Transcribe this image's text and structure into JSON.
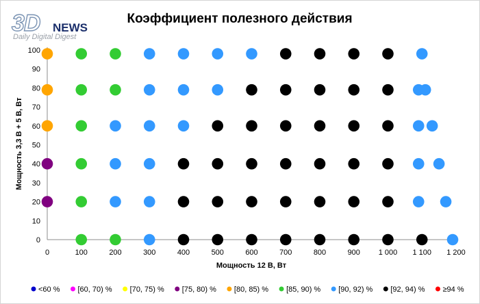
{
  "logo": {
    "mark": "3D",
    "word": "NEWS",
    "tagline": "Daily Digital Digest"
  },
  "chart_data": {
    "type": "scatter",
    "title": "Коэффициент полезного действия",
    "xlabel": "Мощность  12 В, Вт",
    "ylabel": "Мощность  3,3 В + 5 В, Вт",
    "xlim": [
      0,
      1200
    ],
    "ylim": [
      0,
      100
    ],
    "x_ticks": [
      0,
      100,
      200,
      300,
      400,
      500,
      600,
      700,
      800,
      900,
      1000,
      1100,
      1200
    ],
    "x_tick_labels": [
      "0",
      "100",
      "200",
      "300",
      "400",
      "500",
      "600",
      "700",
      "800",
      "900",
      "1 000",
      "1 100",
      "1 200"
    ],
    "y_ticks": [
      0,
      10,
      20,
      30,
      40,
      50,
      60,
      70,
      80,
      90,
      100
    ],
    "y_tick_labels": [
      "0",
      "10",
      "20",
      "30",
      "40",
      "50",
      "60",
      "70",
      "80",
      "90",
      "100"
    ],
    "grid": false,
    "legend_position": "bottom",
    "series": [
      {
        "name": "<60 %",
        "color": "#0000cc",
        "points": []
      },
      {
        "name": "[60, 70) %",
        "color": "#ff00ff",
        "points": []
      },
      {
        "name": "[70, 75) %",
        "color": "#ffff00",
        "points": []
      },
      {
        "name": "[75, 80) %",
        "color": "#800080",
        "points": [
          [
            0,
            40
          ],
          [
            0,
            20
          ]
        ]
      },
      {
        "name": "[80, 85) %",
        "color": "#ffa500",
        "points": [
          [
            0,
            98
          ],
          [
            0,
            79
          ],
          [
            0,
            60
          ]
        ]
      },
      {
        "name": "[85, 90) %",
        "color": "#33cc33",
        "points": [
          [
            100,
            98
          ],
          [
            200,
            98
          ],
          [
            100,
            79
          ],
          [
            200,
            79
          ],
          [
            100,
            60
          ],
          [
            100,
            40
          ],
          [
            100,
            20
          ],
          [
            100,
            0
          ],
          [
            200,
            0
          ]
        ]
      },
      {
        "name": "[90, 92) %",
        "color": "#3399ff",
        "points": [
          [
            300,
            98
          ],
          [
            400,
            98
          ],
          [
            500,
            98
          ],
          [
            600,
            98
          ],
          [
            1100,
            98
          ],
          [
            300,
            79
          ],
          [
            400,
            79
          ],
          [
            500,
            79
          ],
          [
            1090,
            79
          ],
          [
            1110,
            79
          ],
          [
            200,
            60
          ],
          [
            300,
            60
          ],
          [
            400,
            60
          ],
          [
            1090,
            60
          ],
          [
            1130,
            60
          ],
          [
            200,
            40
          ],
          [
            300,
            40
          ],
          [
            1090,
            40
          ],
          [
            1150,
            40
          ],
          [
            200,
            20
          ],
          [
            300,
            20
          ],
          [
            1090,
            20
          ],
          [
            1170,
            20
          ],
          [
            300,
            0
          ],
          [
            1190,
            0
          ]
        ]
      },
      {
        "name": "[92, 94) %",
        "color": "#000000",
        "points": [
          [
            700,
            98
          ],
          [
            800,
            98
          ],
          [
            900,
            98
          ],
          [
            1000,
            98
          ],
          [
            600,
            79
          ],
          [
            700,
            79
          ],
          [
            800,
            79
          ],
          [
            900,
            79
          ],
          [
            1000,
            79
          ],
          [
            500,
            60
          ],
          [
            600,
            60
          ],
          [
            700,
            60
          ],
          [
            800,
            60
          ],
          [
            900,
            60
          ],
          [
            1000,
            60
          ],
          [
            400,
            40
          ],
          [
            500,
            40
          ],
          [
            600,
            40
          ],
          [
            700,
            40
          ],
          [
            800,
            40
          ],
          [
            900,
            40
          ],
          [
            1000,
            40
          ],
          [
            400,
            20
          ],
          [
            500,
            20
          ],
          [
            600,
            20
          ],
          [
            700,
            20
          ],
          [
            800,
            20
          ],
          [
            900,
            20
          ],
          [
            1000,
            20
          ],
          [
            400,
            0
          ],
          [
            500,
            0
          ],
          [
            600,
            0
          ],
          [
            700,
            0
          ],
          [
            800,
            0
          ],
          [
            900,
            0
          ],
          [
            1000,
            0
          ],
          [
            1100,
            0
          ]
        ]
      },
      {
        "name": "≥94 %",
        "color": "#ff0000",
        "points": []
      }
    ]
  }
}
